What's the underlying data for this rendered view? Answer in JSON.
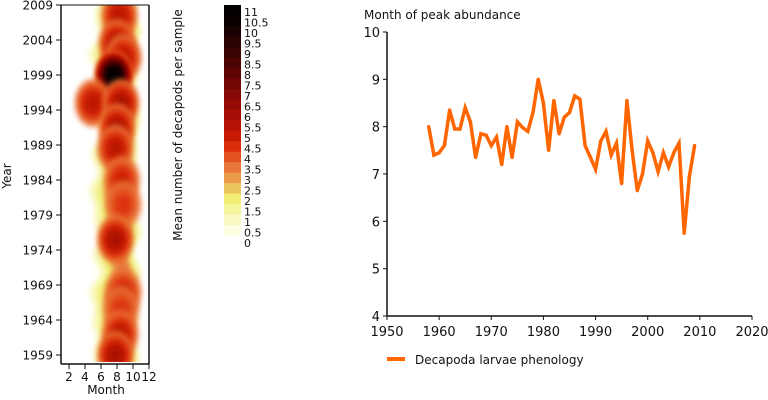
{
  "chart_data": [
    {
      "type": "heatmap",
      "title": "",
      "xlabel": "Month",
      "ylabel": "Year",
      "x_ticks": [
        "2",
        "4",
        "6",
        "8",
        "10",
        "12"
      ],
      "y_ticks": [
        "2009",
        "2004",
        "1999",
        "1994",
        "1989",
        "1984",
        "1979",
        "1974",
        "1969",
        "1964",
        "1959"
      ],
      "xlim": [
        1,
        12
      ],
      "ylim": [
        1958,
        2009
      ],
      "colorbar": {
        "label": "Mean number of decapods per sample",
        "ticks": [
          "11",
          "10.5",
          "10",
          "9.5",
          "9",
          "8.5",
          "8",
          "7.5",
          "7",
          "6.5",
          "6",
          "5.5",
          "5",
          "4.5",
          "4",
          "3.5",
          "3",
          "2.5",
          "2",
          "1.5",
          "1",
          "0.5",
          "0"
        ],
        "colors": [
          "#fdfde0",
          "#f9f9c4",
          "#f4f49a",
          "#f1ec74",
          "#edc55e",
          "#ec9a4c",
          "#e8763a",
          "#e3521f",
          "#dc2e0c",
          "#c81b06",
          "#b81204",
          "#a60d04",
          "#950a04",
          "#840804",
          "#710603",
          "#5f0503",
          "#4c0402",
          "#3b0302",
          "#2a0201",
          "#1a0101",
          "#0a0000",
          "#050000"
        ]
      },
      "hotspots": [
        {
          "month": 8.3,
          "year": 2007.5,
          "value": 5.0
        },
        {
          "month": 8.0,
          "year": 2003.5,
          "value": 5.5
        },
        {
          "month": 8.8,
          "year": 2001.5,
          "value": 5.0
        },
        {
          "month": 7.6,
          "year": 1999.0,
          "value": 11.0
        },
        {
          "month": 5.0,
          "year": 1995.0,
          "value": 5.0
        },
        {
          "month": 8.5,
          "year": 1995.0,
          "value": 5.5
        },
        {
          "month": 8.0,
          "year": 1991.5,
          "value": 5.5
        },
        {
          "month": 7.8,
          "year": 1988.5,
          "value": 5.0
        },
        {
          "month": 8.6,
          "year": 1984.0,
          "value": 4.5
        },
        {
          "month": 8.8,
          "year": 1980.5,
          "value": 4.0
        },
        {
          "month": 7.8,
          "year": 1975.5,
          "value": 5.5
        },
        {
          "month": 8.8,
          "year": 1968.0,
          "value": 4.5
        },
        {
          "month": 8.5,
          "year": 1965.5,
          "value": 4.0
        },
        {
          "month": 8.4,
          "year": 1962.0,
          "value": 5.0
        },
        {
          "month": 7.8,
          "year": 1959.0,
          "value": 5.5
        }
      ]
    },
    {
      "type": "line",
      "title": "Month of peak abundance",
      "xlabel": "",
      "ylabel": "Month of peak abundance",
      "xlim": [
        1950,
        2020
      ],
      "ylim": [
        4,
        10
      ],
      "x_ticks": [
        "1950",
        "1960",
        "1970",
        "1980",
        "1990",
        "2000",
        "2010",
        "2020"
      ],
      "y_ticks": [
        "10",
        "9",
        "8",
        "7",
        "6",
        "5",
        "4"
      ],
      "legend_position": "bottom-left",
      "series": [
        {
          "name": "Decapoda larvae phenology",
          "color": "#ff6600",
          "x": [
            1958,
            1959,
            1960,
            1961,
            1962,
            1963,
            1964,
            1965,
            1966,
            1967,
            1968,
            1969,
            1970,
            1971,
            1972,
            1973,
            1974,
            1975,
            1976,
            1977,
            1978,
            1979,
            1980,
            1981,
            1982,
            1983,
            1984,
            1985,
            1986,
            1987,
            1988,
            1989,
            1990,
            1991,
            1992,
            1993,
            1994,
            1995,
            1996,
            1997,
            1998,
            1999,
            2000,
            2001,
            2002,
            2003,
            2004,
            2005,
            2006,
            2007,
            2008,
            2009
          ],
          "values": [
            8.0,
            7.4,
            7.45,
            7.6,
            8.35,
            7.95,
            7.95,
            8.4,
            8.1,
            7.35,
            7.85,
            7.82,
            7.6,
            7.78,
            7.2,
            8.0,
            7.35,
            8.1,
            7.98,
            7.9,
            8.3,
            9.0,
            8.5,
            7.5,
            8.55,
            7.85,
            8.2,
            8.3,
            8.65,
            8.58,
            7.6,
            7.35,
            7.1,
            7.7,
            7.9,
            7.4,
            7.65,
            6.8,
            8.55,
            7.5,
            6.65,
            7.0,
            7.7,
            7.45,
            7.05,
            7.45,
            7.15,
            7.45,
            7.65,
            5.75,
            6.95,
            7.6
          ]
        }
      ]
    }
  ]
}
